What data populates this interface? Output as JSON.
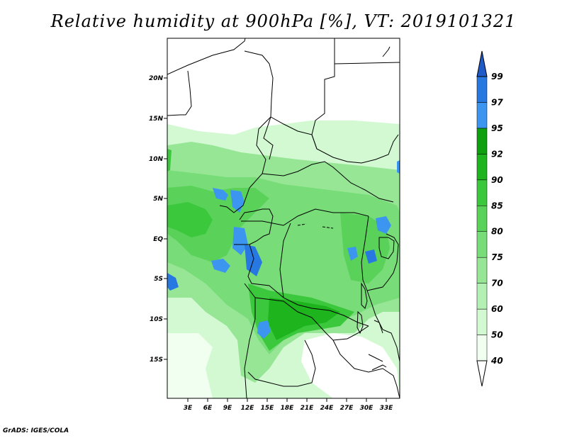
{
  "title": "Relative humidity at 900hPa [%], VT: 2019101321",
  "credit": "GrADS: IGES/COLA",
  "lat_labels": [
    "20N",
    "15N",
    "10N",
    "5N",
    "EQ",
    "5S",
    "10S",
    "15S"
  ],
  "lon_labels": [
    "3E",
    "6E",
    "9E",
    "12E",
    "15E",
    "18E",
    "21E",
    "24E",
    "27E",
    "30E",
    "33E"
  ],
  "colorbar": {
    "levels": [
      "40",
      "50",
      "60",
      "70",
      "75",
      "80",
      "85",
      "90",
      "92",
      "95",
      "97",
      "99"
    ],
    "colors": [
      "#f0fff0",
      "#d2f9d2",
      "#b4f0b4",
      "#96e696",
      "#78dc78",
      "#5ad25a",
      "#3cc83c",
      "#1eb41e",
      "#0fa00f",
      "#3c96f0",
      "#2878e1",
      "#1e5ac8"
    ]
  }
}
